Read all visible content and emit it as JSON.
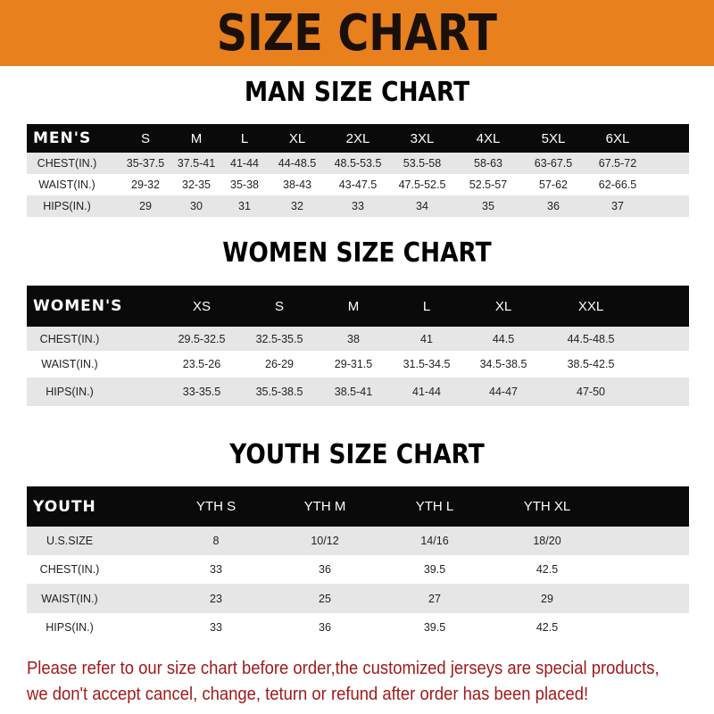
{
  "banner": {
    "title": "SIZE CHART",
    "color": "#e8801e"
  },
  "men": {
    "title": "MAN SIZE CHART",
    "header": [
      "MEN'S",
      "S",
      "M",
      "L",
      "XL",
      "2XL",
      "3XL",
      "4XL",
      "5XL",
      "6XL"
    ],
    "rows": [
      [
        "CHEST(IN.)",
        "35-37.5",
        "37.5-41",
        "41-44",
        "44-48.5",
        "48.5-53.5",
        "53.5-58",
        "58-63",
        "63-67.5",
        "67.5-72"
      ],
      [
        "WAIST(IN.)",
        "29-32",
        "32-35",
        "35-38",
        "38-43",
        "43-47.5",
        "47.5-52.5",
        "52.5-57",
        "57-62",
        "62-66.5"
      ],
      [
        "HIPS(IN.)",
        "29",
        "30",
        "31",
        "32",
        "33",
        "34",
        "35",
        "36",
        "37"
      ]
    ]
  },
  "women": {
    "title": "WOMEN SIZE CHART",
    "header": [
      "WOMEN'S",
      "XS",
      "S",
      "M",
      "L",
      "XL",
      "XXL"
    ],
    "rows": [
      [
        "CHEST(IN.)",
        "29.5-32.5",
        "32.5-35.5",
        "38",
        "41",
        "44.5",
        "44.5-48.5"
      ],
      [
        "WAIST(IN.)",
        "23.5-26",
        "26-29",
        "29-31.5",
        "31.5-34.5",
        "34.5-38.5",
        "38.5-42.5"
      ],
      [
        "HIPS(IN.)",
        "33-35.5",
        "35.5-38.5",
        "38.5-41",
        "41-44",
        "44-47",
        "47-50"
      ]
    ]
  },
  "youth": {
    "title": "YOUTH SIZE CHART",
    "header": [
      "YOUTH",
      "YTH S",
      "YTH M",
      "YTH L",
      "YTH XL"
    ],
    "rows": [
      [
        "U.S.SIZE",
        "8",
        "10/12",
        "14/16",
        "18/20"
      ],
      [
        "CHEST(IN.)",
        "33",
        "36",
        "39.5",
        "42.5"
      ],
      [
        "WAIST(IN.)",
        "23",
        "25",
        "27",
        "29"
      ],
      [
        "HIPS(IN.)",
        "33",
        "36",
        "39.5",
        "42.5"
      ]
    ]
  },
  "notice": {
    "line1": "Please refer to our size chart before order,the customized jerseys are special products,",
    "line2": "we don't accept cancel, change, teturn or refund after order has been placed!",
    "color": "#a11a1a"
  }
}
